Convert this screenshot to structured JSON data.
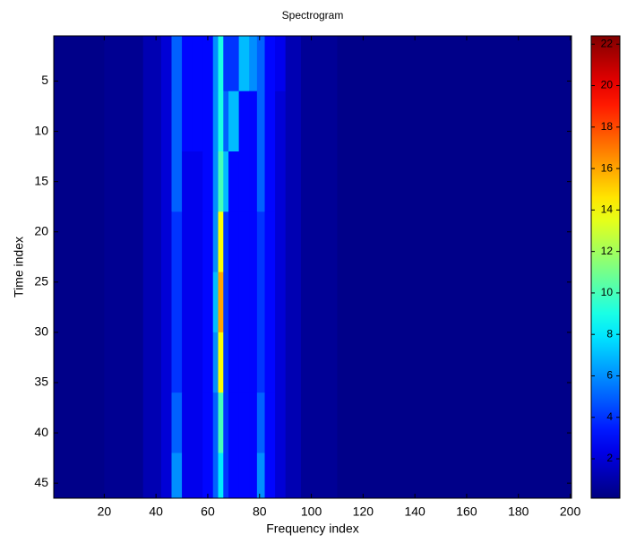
{
  "chart_data": {
    "type": "heatmap",
    "title": "Spectrogram",
    "x_label": "Frequency index",
    "y_label": "Time index",
    "x_edges": [
      0.5,
      20,
      35,
      42,
      46,
      50,
      54,
      58,
      62,
      64,
      66,
      68,
      72,
      76,
      79,
      82,
      86,
      90,
      96,
      110,
      200.5
    ],
    "y_edges": [
      0.5,
      6,
      12,
      18,
      24,
      30,
      36,
      42,
      46.5
    ],
    "z": [
      [
        0.3,
        0.5,
        1.2,
        2,
        5,
        3,
        3,
        3,
        6,
        9,
        4,
        4,
        7,
        6,
        5,
        3,
        2.5,
        1.2,
        0.6,
        0.3
      ],
      [
        0.3,
        0.5,
        1.2,
        2,
        5,
        3,
        3,
        3,
        6,
        9,
        5,
        7,
        3,
        3,
        5,
        3,
        2,
        1.2,
        0.6,
        0.3
      ],
      [
        0.3,
        0.5,
        1.2,
        2,
        5,
        2.5,
        2.5,
        3,
        6,
        10,
        7,
        3,
        3,
        3,
        5,
        3,
        2,
        1.2,
        0.6,
        0.3
      ],
      [
        0.3,
        0.5,
        1.2,
        2,
        4,
        2.5,
        2.5,
        3,
        6,
        14,
        4,
        3,
        3,
        3,
        4,
        3,
        2,
        1.2,
        0.6,
        0.3
      ],
      [
        0.3,
        0.5,
        1.2,
        2,
        4,
        2.5,
        2.5,
        3,
        7,
        16,
        4,
        3,
        3,
        3,
        4,
        3,
        2,
        1.2,
        0.6,
        0.3
      ],
      [
        0.3,
        0.5,
        1.2,
        2,
        4,
        2.5,
        2.5,
        3,
        6,
        14,
        4,
        3,
        3,
        3,
        4,
        3,
        2,
        1.2,
        0.6,
        0.3
      ],
      [
        0.3,
        0.5,
        1.2,
        2,
        5,
        2.5,
        2.5,
        3,
        5,
        10,
        4,
        3,
        3,
        3,
        5,
        3,
        2,
        1.2,
        0.6,
        0.3
      ],
      [
        0.3,
        0.5,
        1.2,
        2,
        6,
        2.5,
        2.5,
        3,
        5,
        8,
        4,
        3,
        3,
        3,
        6,
        3,
        2,
        1.2,
        0.6,
        0.3
      ]
    ],
    "xlim": [
      0.5,
      200.5
    ],
    "ylim": [
      0.5,
      46.5
    ],
    "y_reversed": true,
    "xticks": [
      20,
      40,
      60,
      80,
      100,
      120,
      140,
      160,
      180,
      200
    ],
    "yticks": [
      5,
      10,
      15,
      20,
      25,
      30,
      35,
      40,
      45
    ],
    "clim": [
      0.1,
      22.4
    ],
    "colormap": "jet",
    "cticks": [
      2,
      4,
      6,
      8,
      10,
      12,
      14,
      16,
      18,
      20,
      22
    ]
  }
}
